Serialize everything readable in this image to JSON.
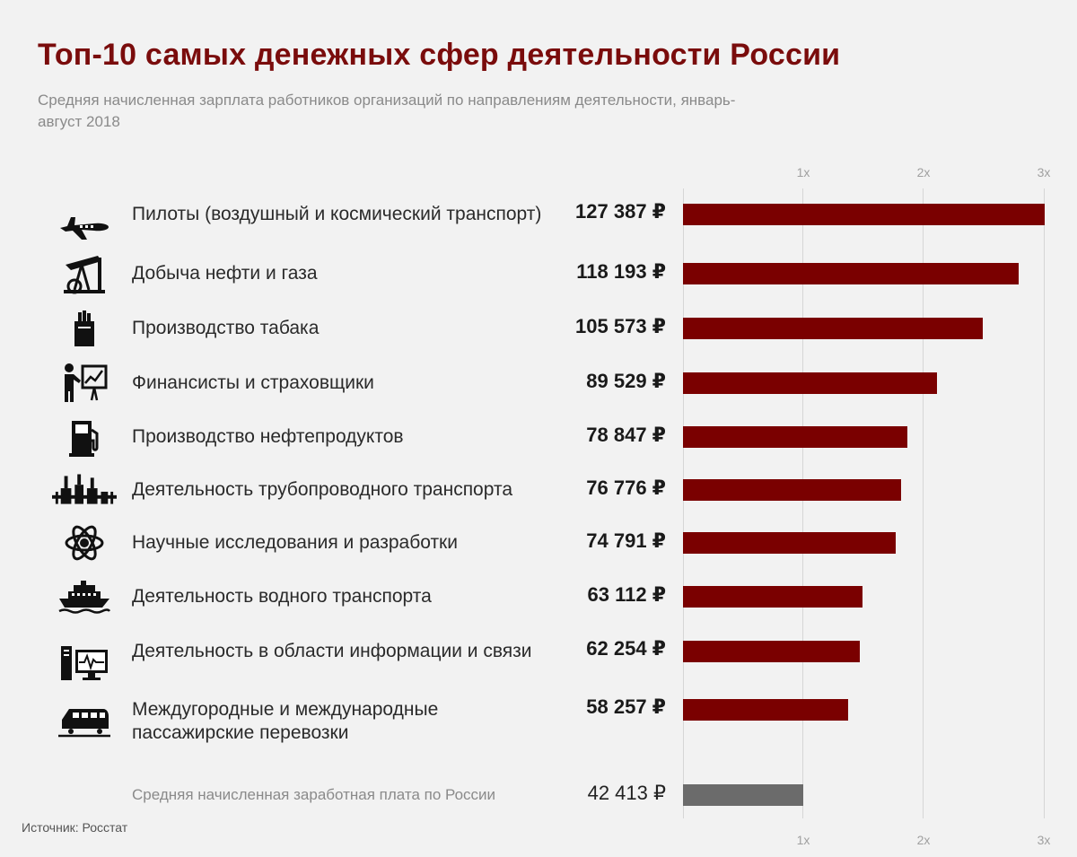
{
  "header": {
    "title": "Топ-10 самых денежных сфер деятельности России",
    "subtitle": "Средняя начисленная зарплата работников организаций по направлениям деятельности, январь-август 2018"
  },
  "axis": {
    "ticks": [
      "1x",
      "2x",
      "3x"
    ]
  },
  "source": "Источник: Росстат",
  "colors": {
    "bar": "#7a0000",
    "average_bar": "#6b6b6b",
    "title": "#7a0c0c"
  },
  "chart_data": {
    "type": "bar",
    "orientation": "horizontal",
    "title": "Топ-10 самых денежных сфер деятельности России",
    "subtitle": "Средняя начисленная зарплата работников организаций по направлениям деятельности, январь-август 2018",
    "unit": "₽",
    "x_axis": {
      "ticks": [
        "1x",
        "2x",
        "3x"
      ],
      "reference_value": 42413,
      "range": [
        0,
        3
      ]
    },
    "categories": [
      "Пилоты (воздушный и космический транспорт)",
      "Добыча нефти и газа",
      "Производство табака",
      "Финансисты и страховщики",
      "Производство нефтепродуктов",
      "Деятельность трубопроводного транспорта",
      "Научные исследования и разработки",
      "Деятельность водного транспорта",
      "Деятельность в области информации и связи",
      "Междугородные и международные пассажирские перевозки"
    ],
    "values": [
      127387,
      118193,
      105573,
      89529,
      78847,
      76776,
      74791,
      63112,
      62254,
      58257
    ],
    "value_labels": [
      "127 387 ₽",
      "118 193 ₽",
      "105 573 ₽",
      "89 529 ₽",
      "78 847 ₽",
      "76 776 ₽",
      "74 791 ₽",
      "63 112 ₽",
      "62 254 ₽",
      "58 257 ₽"
    ],
    "icons": [
      "airplane-icon",
      "oil-pump-icon",
      "cigarette-pack-icon",
      "presenter-chart-icon",
      "fuel-pump-icon",
      "pipeline-plant-icon",
      "atom-icon",
      "ship-icon",
      "computer-monitor-icon",
      "train-icon"
    ],
    "average": {
      "label": "Средняя начисленная заработная плата по России",
      "value": 42413,
      "value_label": "42 413 ₽"
    }
  }
}
